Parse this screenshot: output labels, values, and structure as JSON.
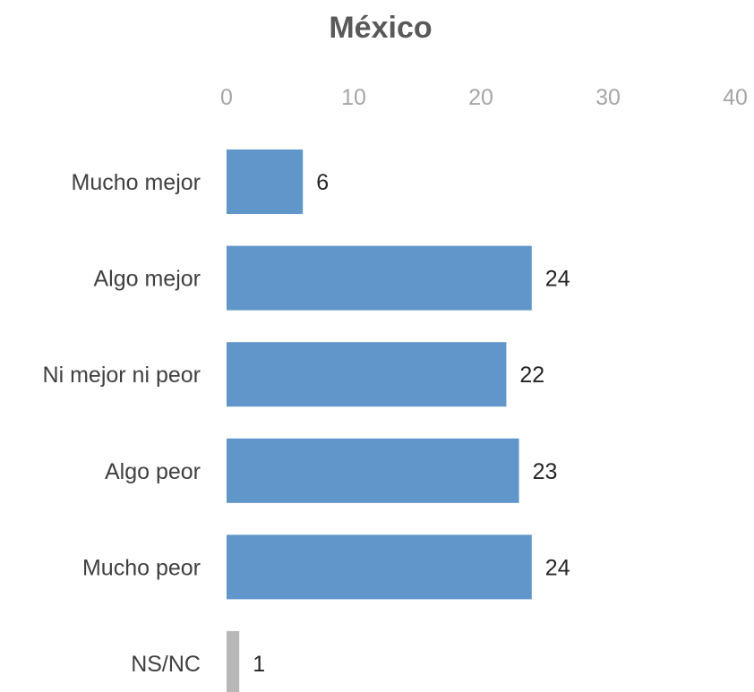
{
  "chart_data": {
    "type": "bar",
    "orientation": "horizontal",
    "title": "México",
    "xlabel": "",
    "ylabel": "",
    "xlim": [
      0,
      40
    ],
    "ticks": [
      0,
      10,
      20,
      30,
      40
    ],
    "tick_labels": [
      "0",
      "10",
      "20",
      "30",
      "40"
    ],
    "axis_position": "top",
    "grid": false,
    "legend": "none",
    "categories": [
      "Mucho mejor",
      "Algo mejor",
      "Ni mejor ni peor",
      "Algo peor",
      "Mucho peor",
      "NS/NC"
    ],
    "values": [
      6,
      24,
      22,
      23,
      24,
      1
    ],
    "data_labels": [
      "6",
      "24",
      "22",
      "23",
      "24",
      "1"
    ],
    "bar_colors": [
      "#6096c9",
      "#6096c9",
      "#6096c9",
      "#6096c9",
      "#6096c9",
      "#b7b7b7"
    ]
  }
}
